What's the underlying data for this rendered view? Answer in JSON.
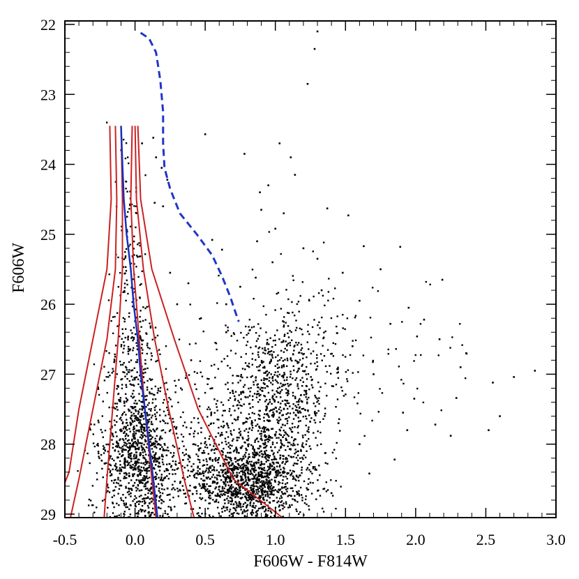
{
  "chart_data": {
    "type": "scatter",
    "title": "",
    "xlabel": "F606W - F814W",
    "ylabel": "F606W",
    "xlim": [
      -0.5,
      3.0
    ],
    "ylim": [
      29.05,
      21.95
    ],
    "y_inverted": true,
    "grid": false,
    "x_ticks": [
      "-0.5",
      "0.0",
      "0.5",
      "1.0",
      "1.5",
      "2.0",
      "2.5",
      "3.0"
    ],
    "y_ticks": [
      "22",
      "23",
      "24",
      "25",
      "26",
      "27",
      "28",
      "29"
    ],
    "colors": {
      "points": "#000000",
      "contours": "#cc2020",
      "ridge": "#1a2fbf",
      "isochrone": "#1f35c8"
    },
    "series": [
      {
        "kind": "scatter",
        "points": [
          [
            1.3,
            22.1
          ],
          [
            1.28,
            22.35
          ],
          [
            1.23,
            22.85
          ],
          [
            0.5,
            23.57
          ],
          [
            0.05,
            23.7
          ],
          [
            0.13,
            23.62
          ],
          [
            0.15,
            23.9
          ],
          [
            0.19,
            24.05
          ],
          [
            0.14,
            24.55
          ],
          [
            0.2,
            24.6
          ],
          [
            0.78,
            23.85
          ],
          [
            1.03,
            23.7
          ],
          [
            1.11,
            23.9
          ],
          [
            1.14,
            24.15
          ],
          [
            0.89,
            24.4
          ],
          [
            0.95,
            24.3
          ],
          [
            0.9,
            24.65
          ],
          [
            1.06,
            24.7
          ],
          [
            1.0,
            24.92
          ],
          [
            0.87,
            25.1
          ],
          [
            1.2,
            25.2
          ],
          [
            1.37,
            24.63
          ],
          [
            1.52,
            24.73
          ],
          [
            0.23,
            24.22
          ],
          [
            0.55,
            25.08
          ],
          [
            0.62,
            25.22
          ],
          [
            0.98,
            25.4
          ],
          [
            1.63,
            25.17
          ],
          [
            1.89,
            25.18
          ],
          [
            1.3,
            25.35
          ],
          [
            1.75,
            25.5
          ],
          [
            2.19,
            25.65
          ],
          [
            0.75,
            25.75
          ],
          [
            0.86,
            25.62
          ],
          [
            1.48,
            25.55
          ],
          [
            1.33,
            25.8
          ],
          [
            1.6,
            25.95
          ],
          [
            1.95,
            26.05
          ],
          [
            2.06,
            26.22
          ],
          [
            2.01,
            26.46
          ],
          [
            1.82,
            26.28
          ],
          [
            2.17,
            26.5
          ],
          [
            2.36,
            26.7
          ],
          [
            2.32,
            26.9
          ],
          [
            2.85,
            26.95
          ],
          [
            2.7,
            27.04
          ],
          [
            2.55,
            27.12
          ],
          [
            2.29,
            27.34
          ],
          [
            1.99,
            27.35
          ],
          [
            1.91,
            27.55
          ],
          [
            2.6,
            27.6
          ],
          [
            2.14,
            27.72
          ],
          [
            1.94,
            27.8
          ],
          [
            2.25,
            27.88
          ],
          [
            2.52,
            27.8
          ],
          [
            1.85,
            28.22
          ],
          [
            1.67,
            28.42
          ],
          [
            1.25,
            28.55
          ],
          [
            1.4,
            28.7
          ],
          [
            0.9,
            28.1
          ],
          [
            0.3,
            26.0
          ],
          [
            0.47,
            26.2
          ],
          [
            0.4,
            26.8
          ],
          [
            0.55,
            27.2
          ],
          [
            0.25,
            25.55
          ],
          [
            0.38,
            25.7
          ],
          [
            0.65,
            26.0
          ],
          [
            0.65,
            26.4
          ],
          [
            1.55,
            26.6
          ],
          [
            1.7,
            27.0
          ],
          [
            1.45,
            27.7
          ],
          [
            1.6,
            28.0
          ]
        ],
        "clouds": [
          {
            "cx": 0.03,
            "cy": 28.25,
            "sx": 0.14,
            "sy": 0.55,
            "n": 1000
          },
          {
            "cx": 0.0,
            "cy": 27.0,
            "sx": 0.09,
            "sy": 0.6,
            "n": 250
          },
          {
            "cx": -0.04,
            "cy": 25.3,
            "sx": 0.05,
            "sy": 0.9,
            "n": 110
          },
          {
            "cx": 0.8,
            "cy": 28.55,
            "sx": 0.22,
            "sy": 0.32,
            "n": 1300
          },
          {
            "cx": 0.98,
            "cy": 27.55,
            "sx": 0.2,
            "sy": 0.5,
            "n": 650
          },
          {
            "cx": 1.12,
            "cy": 26.7,
            "sx": 0.22,
            "sy": 0.45,
            "n": 260
          },
          {
            "cx": 1.55,
            "cy": 26.9,
            "sx": 0.42,
            "sy": 0.7,
            "n": 80
          },
          {
            "cx": 0.45,
            "cy": 27.6,
            "sx": 0.28,
            "sy": 0.6,
            "n": 180
          }
        ]
      },
      {
        "kind": "contour",
        "lines": [
          [
            [
              -0.18,
              23.45
            ],
            [
              -0.17,
              24.5
            ],
            [
              -0.2,
              25.5
            ],
            [
              -0.3,
              26.5
            ],
            [
              -0.4,
              27.5
            ],
            [
              -0.47,
              28.4
            ],
            [
              -0.5,
              28.55
            ]
          ],
          [
            [
              -0.14,
              23.45
            ],
            [
              -0.13,
              24.5
            ],
            [
              -0.14,
              25.5
            ],
            [
              -0.2,
              26.5
            ],
            [
              -0.3,
              27.5
            ],
            [
              -0.4,
              28.5
            ],
            [
              -0.46,
              29.05
            ]
          ],
          [
            [
              -0.1,
              23.45
            ],
            [
              -0.09,
              24.5
            ],
            [
              -0.09,
              25.5
            ],
            [
              -0.12,
              26.5
            ],
            [
              -0.16,
              27.5
            ],
            [
              -0.2,
              28.5
            ],
            [
              -0.22,
              29.05
            ]
          ],
          [
            [
              -0.02,
              23.45
            ],
            [
              -0.03,
              24.5
            ],
            [
              -0.01,
              25.5
            ],
            [
              0.03,
              26.5
            ],
            [
              0.07,
              27.5
            ],
            [
              0.12,
              28.5
            ],
            [
              0.15,
              29.05
            ]
          ],
          [
            [
              0.0,
              23.45
            ],
            [
              0.01,
              24.5
            ],
            [
              0.06,
              25.5
            ],
            [
              0.14,
              26.5
            ],
            [
              0.24,
              27.5
            ],
            [
              0.35,
              28.5
            ],
            [
              0.42,
              29.05
            ]
          ],
          [
            [
              0.02,
              23.45
            ],
            [
              0.04,
              24.5
            ],
            [
              0.12,
              25.5
            ],
            [
              0.28,
              26.5
            ],
            [
              0.45,
              27.5
            ],
            [
              0.7,
              28.5
            ],
            [
              1.05,
              29.05
            ]
          ]
        ]
      },
      {
        "kind": "ridge",
        "points": [
          [
            -0.1,
            23.45
          ],
          [
            -0.09,
            24.0
          ],
          [
            -0.08,
            24.5
          ],
          [
            -0.06,
            25.0
          ],
          [
            -0.03,
            25.5
          ],
          [
            -0.01,
            26.0
          ],
          [
            0.02,
            26.5
          ],
          [
            0.04,
            27.0
          ],
          [
            0.07,
            27.5
          ],
          [
            0.1,
            28.0
          ],
          [
            0.13,
            28.5
          ],
          [
            0.16,
            29.05
          ]
        ]
      },
      {
        "kind": "isochrone",
        "points": [
          [
            0.04,
            22.12
          ],
          [
            0.1,
            22.2
          ],
          [
            0.15,
            22.4
          ],
          [
            0.18,
            22.8
          ],
          [
            0.2,
            23.25
          ],
          [
            0.2,
            23.7
          ],
          [
            0.21,
            24.05
          ],
          [
            0.25,
            24.35
          ],
          [
            0.32,
            24.7
          ],
          [
            0.44,
            25.0
          ],
          [
            0.55,
            25.3
          ],
          [
            0.62,
            25.6
          ],
          [
            0.68,
            25.9
          ],
          [
            0.73,
            26.2
          ],
          [
            0.74,
            26.25
          ]
        ]
      }
    ]
  }
}
